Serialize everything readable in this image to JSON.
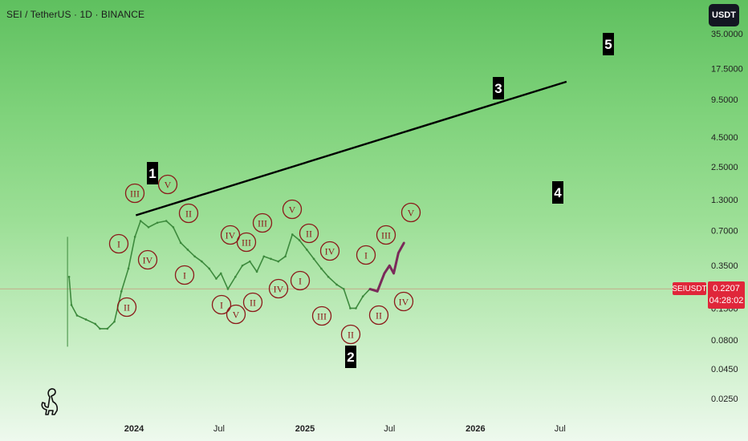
{
  "header": {
    "title": "SEI / TetherUS · 1D · BINANCE"
  },
  "currency_button": "USDT",
  "price_tag": {
    "symbol": "SEIUSDT",
    "price": "0.2207",
    "countdown": "04:28:02"
  },
  "logo_icon": "dinosaur-logo-icon",
  "colors": {
    "background_top": "#5fc05f",
    "background_bottom": "#eef9ee",
    "price_line": "#e0263a",
    "trend_line": "#000000",
    "wave_circle": "#8b1a1a",
    "candle_early": "#3d8a3d",
    "candle_recent": "#7a2a5a"
  },
  "chart_data": {
    "type": "line",
    "title": "SEI / TetherUS · 1D · BINANCE",
    "xlabel": "",
    "ylabel": "",
    "y_scale": "log",
    "y_ticks": [
      "35.0000",
      "17.5000",
      "9.5000",
      "4.5000",
      "2.5000",
      "1.3000",
      "0.7000",
      "0.3500",
      "0.1500",
      "0.0800",
      "0.0450",
      "0.0250"
    ],
    "x_ticks": [
      "2024",
      "Jul",
      "2025",
      "Jul",
      "2026",
      "Jul"
    ],
    "x_tick_dates": [
      "2024-01-01",
      "2024-07-01",
      "2025-01-01",
      "2025-07-01",
      "2026-01-01",
      "2026-07-01"
    ],
    "current_price": 0.2207,
    "series": [
      {
        "name": "",
        "x": [
          "2023-08-15",
          "2023-08-20",
          "2023-09-01",
          "2023-09-20",
          "2023-10-10",
          "2023-10-20",
          "2023-11-05",
          "2023-11-20",
          "2023-12-05",
          "2023-12-20",
          "2024-01-03",
          "2024-01-15",
          "2024-02-01",
          "2024-02-20",
          "2024-03-10",
          "2024-03-25",
          "2024-04-10",
          "2024-04-25",
          "2024-05-10",
          "2024-05-25",
          "2024-06-10",
          "2024-06-25",
          "2024-07-05",
          "2024-07-20",
          "2024-08-05",
          "2024-08-20",
          "2024-09-05",
          "2024-09-20",
          "2024-10-05",
          "2024-10-20",
          "2024-11-05",
          "2024-11-20",
          "2024-12-05",
          "2024-12-20",
          "2025-01-05",
          "2025-01-20",
          "2025-02-05",
          "2025-02-20",
          "2025-03-10",
          "2025-03-25",
          "2025-04-08",
          "2025-04-20",
          "2025-05-05",
          "2025-05-20",
          "2025-06-05",
          "2025-06-20",
          "2025-07-01",
          "2025-07-10",
          "2025-07-20",
          "2025-08-01"
        ],
        "values": [
          0.28,
          0.16,
          0.13,
          0.12,
          0.11,
          0.1,
          0.1,
          0.115,
          0.21,
          0.33,
          0.62,
          0.85,
          0.75,
          0.82,
          0.85,
          0.75,
          0.55,
          0.48,
          0.42,
          0.38,
          0.33,
          0.27,
          0.3,
          0.22,
          0.28,
          0.35,
          0.38,
          0.31,
          0.42,
          0.4,
          0.38,
          0.42,
          0.65,
          0.58,
          0.48,
          0.4,
          0.33,
          0.28,
          0.24,
          0.22,
          0.15,
          0.15,
          0.19,
          0.22,
          0.21,
          0.3,
          0.35,
          0.3,
          0.45,
          0.55
        ]
      }
    ],
    "trend_line": {
      "points": [
        [
          "2024-01-05",
          0.95
        ],
        [
          "2026-07-15",
          13.5
        ]
      ]
    },
    "annotations": {
      "wave_labels": [
        "1",
        "2",
        "3",
        "4",
        "5"
      ],
      "sub_waves": [
        "III",
        "V",
        "I",
        "IV",
        "II",
        "II",
        "I",
        "III",
        "IV",
        "V",
        "II",
        "III",
        "I",
        "V",
        "II",
        "I",
        "IV",
        "IV",
        "III",
        "II",
        "I",
        "V",
        "III",
        "II",
        "IV",
        "V",
        "III",
        "I"
      ]
    }
  }
}
